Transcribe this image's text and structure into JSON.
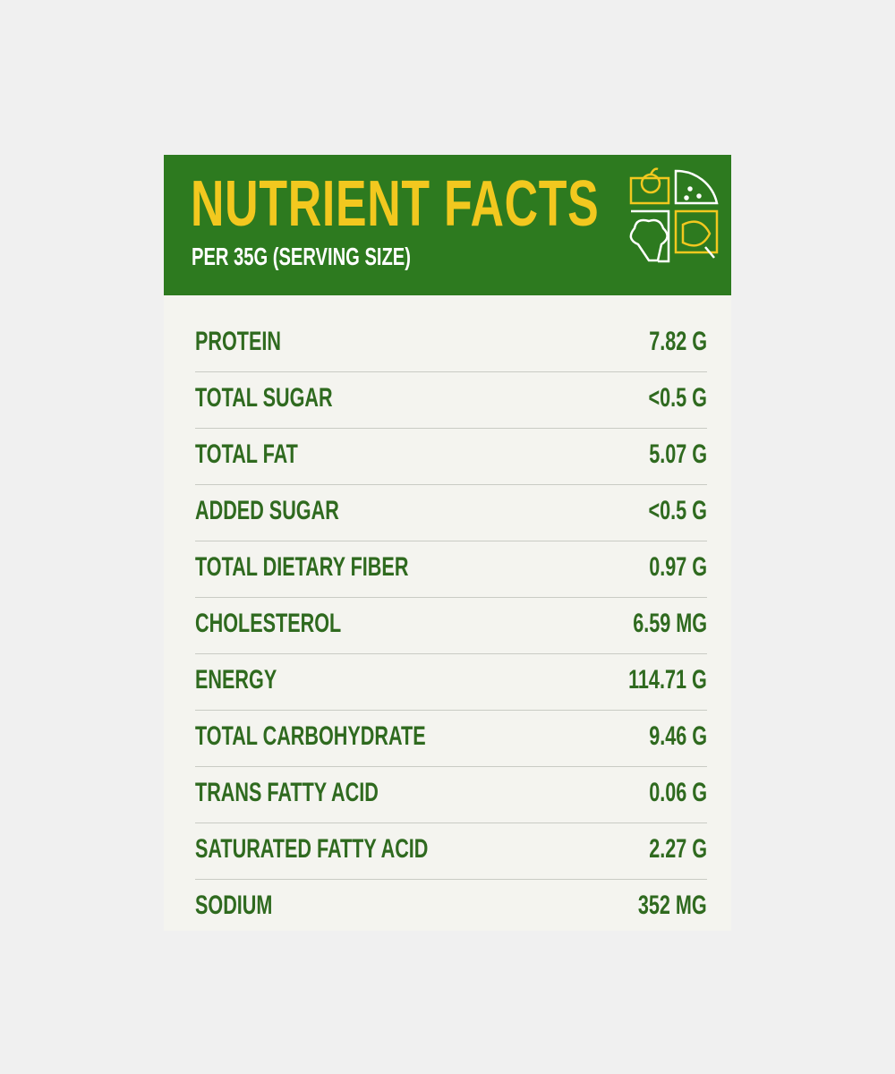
{
  "header": {
    "title": "NUTRIENT FACTS",
    "subtitle": "PER 35G (SERVING SIZE)"
  },
  "table": {
    "rows": [
      [
        "PROTEIN",
        "7.82 G"
      ],
      [
        "TOTAL SUGAR",
        "<0.5 G"
      ],
      [
        "TOTAL FAT",
        "5.07 G"
      ],
      [
        "ADDED SUGAR",
        "<0.5 G"
      ],
      [
        "TOTAL DIETARY FIBER",
        "0.97 G"
      ],
      [
        "CHOLESTEROL",
        "6.59 MG"
      ],
      [
        "ENERGY",
        "114.71 G"
      ],
      [
        "TOTAL CARBOHYDRATE",
        "9.46 G"
      ],
      [
        "TRANS FATTY ACID",
        "0.06 G"
      ],
      [
        "SATURATED FATTY ACID",
        "2.27 G"
      ],
      [
        "SODIUM",
        "352 MG"
      ]
    ]
  }
}
